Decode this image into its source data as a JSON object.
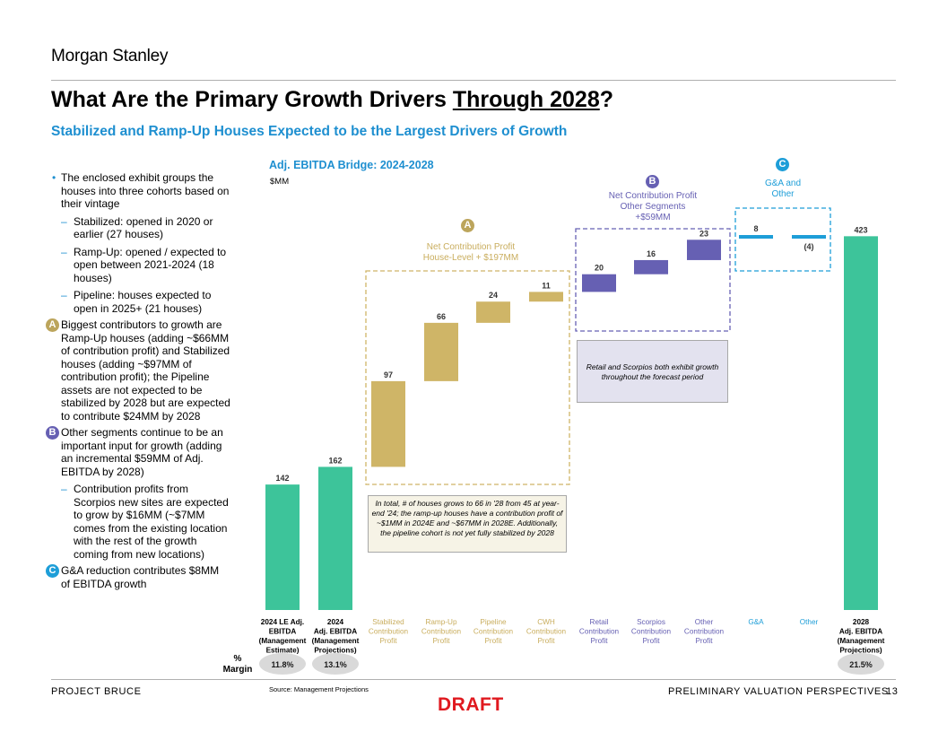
{
  "header": {
    "logo": "Morgan Stanley",
    "title_prefix": "What Are the Primary Growth Drivers ",
    "title_underlined": "Through 2028",
    "title_suffix": "?",
    "subtitle": "Stabilized and Ramp-Up Houses Expected to be the Largest Drivers of Growth"
  },
  "bullets": {
    "b1": "The enclosed exhibit groups the houses into three cohorts based on their vintage",
    "b1_sub1": "Stabilized: opened in 2020 or earlier (27 houses)",
    "b1_sub2": "Ramp-Up: opened / expected to open between 2021-2024 (18 houses)",
    "b1_sub3": "Pipeline: houses expected to open in 2025+ (21 houses)",
    "b2": "Biggest contributors to growth are Ramp-Up houses (adding ~$66MM of contribution profit) and Stabilized houses (adding ~$97MM of contribution profit); the Pipeline assets are not expected to be stabilized by 2028 but are expected to contribute $24MM by 2028",
    "b3": "Other segments continue to be an important input for growth (adding an incremental $59MM of Adj. EBITDA by 2028)",
    "b3_sub1": "Contribution profits from Scorpios new sites are expected to grow by $16MM (~$7MM comes from the existing location with the rest of the growth coming from new locations)",
    "b4": "G&A reduction contributes $8MM of EBITDA growth",
    "marker_a": "A",
    "marker_b": "B",
    "marker_c": "C"
  },
  "chart_labels": {
    "title": "Adj. EBITDA Bridge: 2024-2028",
    "units": "$MM",
    "group_a_marker": "A",
    "group_a_line1": "Net Contribution Profit",
    "group_a_line2": "House-Level + $197MM",
    "group_b_marker": "B",
    "group_b_line1": "Net Contribution Profit",
    "group_b_line2": "Other Segments",
    "group_b_line3": "+$59MM",
    "group_c_marker": "C",
    "group_c_line1": "G&A and",
    "group_c_line2": "Other",
    "note_houses": "In total, # of houses grows to 66 in '28 from 45 at year-end '24; the ramp-up houses have a contribution profit of ~$1MM in 2024E and ~$67MM in 2028E. Additionally, the pipeline cohort is not yet fully stabilized by 2028",
    "note_segments": "Retail and Scorpios both exhibit growth throughout the forecast period",
    "margin_label_1": "%",
    "margin_label_2": "Margin",
    "margins": [
      "11.8%",
      "13.1%",
      "21.5%"
    ],
    "source": "Source: Management Projections"
  },
  "chart_data": {
    "type": "bar",
    "subtype": "waterfall",
    "title": "Adj. EBITDA Bridge: 2024-2028",
    "ylabel": "$MM",
    "categories": [
      "2024 LE Adj. EBITDA (Management Estimate)",
      "2024 Adj. EBITDA (Management Projections)",
      "Stabilized Contribution Profit",
      "Ramp-Up Contribution Profit",
      "Pipeline Contribution Profit",
      "CWH Contribution Profit",
      "Retail Contribution Profit",
      "Scorpios Contribution Profit",
      "Other Contribution Profit",
      "G&A",
      "Other",
      "2028 Adj. EBITDA (Management Projections)"
    ],
    "category_lines": [
      [
        "2024 LE Adj.",
        "EBITDA",
        "(Management",
        "Estimate)"
      ],
      [
        "2024",
        "Adj. EBITDA",
        "(Management",
        "Projections)"
      ],
      [
        "Stabilized",
        "Contribution",
        "Profit"
      ],
      [
        "Ramp-Up",
        "Contribution",
        "Profit"
      ],
      [
        "Pipeline",
        "Contribution",
        "Profit"
      ],
      [
        "CWH",
        "Contribution",
        "Profit"
      ],
      [
        "Retail",
        "Contribution",
        "Profit"
      ],
      [
        "Scorpios",
        "Contribution",
        "Profit"
      ],
      [
        "Other",
        "Contribution",
        "Profit"
      ],
      [
        "G&A"
      ],
      [
        "Other"
      ],
      [
        "2028",
        "Adj. EBITDA",
        "(Management",
        "Projections)"
      ]
    ],
    "values": [
      142,
      162,
      97,
      66,
      24,
      11,
      20,
      16,
      23,
      8,
      -4,
      423
    ],
    "value_labels": [
      "142",
      "162",
      "97",
      "66",
      "24",
      "11",
      "20",
      "16",
      "23",
      "8",
      "(4)",
      "423"
    ],
    "bar_kinds": [
      "total",
      "total",
      "delta",
      "delta",
      "delta",
      "delta",
      "delta",
      "delta",
      "delta",
      "delta",
      "delta",
      "total"
    ],
    "margins": [
      "11.8%",
      "13.1%",
      null,
      null,
      null,
      null,
      null,
      null,
      null,
      null,
      null,
      "21.5%"
    ],
    "colors": {
      "total": "#3dc49a",
      "house_level": "#cfb567",
      "other_segments": "#6660b3",
      "ga_other": "#1e9ed8",
      "house_level_label": "#c9ad5d",
      "other_segments_label": "#6660b3"
    },
    "groups": [
      {
        "marker": "A",
        "name": "Net Contribution Profit House-Level + $197MM",
        "members": [
          2,
          3,
          4,
          5
        ]
      },
      {
        "marker": "B",
        "name": "Net Contribution Profit Other Segments +$59MM",
        "members": [
          6,
          7,
          8
        ]
      },
      {
        "marker": "C",
        "name": "G&A and Other",
        "members": [
          9,
          10
        ]
      }
    ]
  },
  "footer": {
    "left": "PROJECT BRUCE",
    "right": "PRELIMINARY VALUATION PERSPECTIVES",
    "page": "13",
    "draft": "DRAFT"
  }
}
